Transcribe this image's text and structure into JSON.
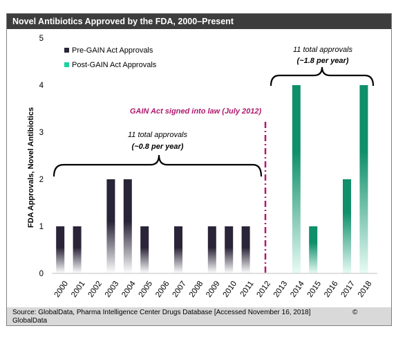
{
  "title": "Novel Antibiotics Approved by the FDA, 2000–Present",
  "source": "Source: GlobalData, Pharma Intelligence Center Drugs Database [Accessed November 16, 2018]",
  "copyright_symbol": "©",
  "copyright_owner": "GlobalData",
  "colors": {
    "pre": "#2a2438",
    "post": "#0f8f6a",
    "law_line": "#b0196e",
    "title_bg": "#3d3d3d",
    "source_bg": "#d9d9d9"
  },
  "chart_data": {
    "type": "bar",
    "ylabel": "FDA Approvals, Novel Antibiotics",
    "ylim": [
      0,
      5
    ],
    "yticks": [
      "0",
      "1",
      "2",
      "3",
      "4",
      "5"
    ],
    "categories": [
      "2000",
      "2001",
      "2002",
      "2003",
      "2004",
      "2005",
      "2006",
      "2007",
      "2008",
      "2009",
      "2010",
      "2011",
      "2012",
      "2013",
      "2014",
      "2015",
      "2016",
      "2017",
      "2018"
    ],
    "series": [
      {
        "name": "Pre-GAIN Act Approvals",
        "values": [
          1,
          1,
          0,
          2,
          2,
          1,
          0,
          1,
          0,
          1,
          1,
          1,
          null,
          null,
          null,
          null,
          null,
          null,
          null
        ]
      },
      {
        "name": "Post-GAIN Act Approvals",
        "values": [
          null,
          null,
          null,
          null,
          null,
          null,
          null,
          null,
          null,
          null,
          null,
          null,
          0,
          0,
          4,
          1,
          0,
          2,
          4
        ]
      }
    ],
    "legend_position": "top-left",
    "annotations": {
      "pre_total": "11 total approvals",
      "pre_rate": "(~0.8 per year)",
      "post_total": "11 total approvals",
      "post_rate": "(~1.8 per year)",
      "law": "GAIN Act signed into law (July 2012)"
    }
  }
}
